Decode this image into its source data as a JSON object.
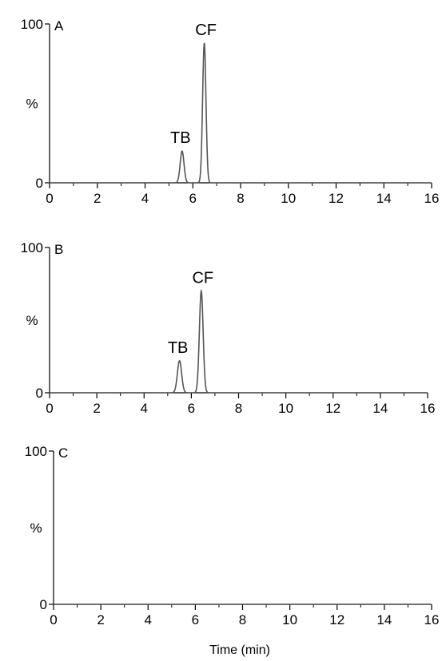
{
  "chart_data": [
    {
      "type": "line",
      "panel_label": "A",
      "ylabel": "%",
      "xlim": [
        0,
        16
      ],
      "ylim": [
        0,
        100
      ],
      "x_ticks": [
        "0",
        "2",
        "4",
        "6",
        "8",
        "10",
        "12",
        "14",
        "16"
      ],
      "y_ticks": [
        "0",
        "100"
      ],
      "peaks": [
        {
          "label": "TB",
          "rt": 5.55,
          "height": 20,
          "width": 0.08
        },
        {
          "label": "CF",
          "rt": 6.48,
          "height": 88,
          "width": 0.07
        }
      ]
    },
    {
      "type": "line",
      "panel_label": "B",
      "ylabel": "%",
      "xlim": [
        0,
        16
      ],
      "ylim": [
        0,
        100
      ],
      "x_ticks": [
        "0",
        "2",
        "4",
        "6",
        "8",
        "10",
        "12",
        "14",
        "16"
      ],
      "y_ticks": [
        "0",
        "100"
      ],
      "peaks": [
        {
          "label": "TB",
          "rt": 5.5,
          "height": 22,
          "width": 0.09
        },
        {
          "label": "CF",
          "rt": 6.42,
          "height": 70,
          "width": 0.08
        }
      ]
    },
    {
      "type": "line",
      "panel_label": "C",
      "ylabel": "%",
      "xlim": [
        0,
        16
      ],
      "ylim": [
        0,
        100
      ],
      "x_ticks": [
        "0",
        "2",
        "4",
        "6",
        "8",
        "10",
        "12",
        "14",
        "16"
      ],
      "y_ticks": [
        "0",
        "100"
      ],
      "peaks": []
    }
  ],
  "xlabel": "Time (min)"
}
